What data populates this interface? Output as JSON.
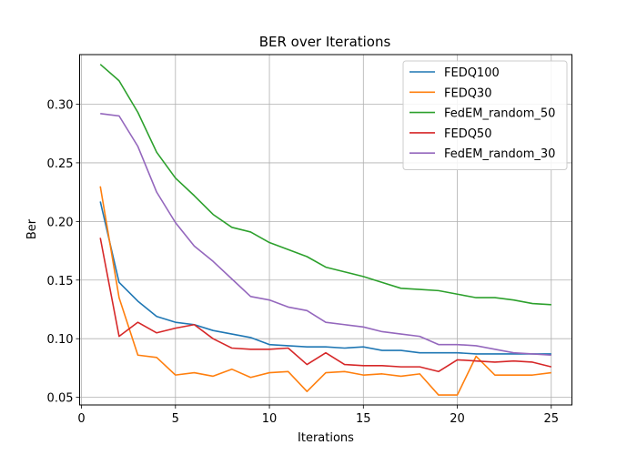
{
  "chart_data": {
    "type": "line",
    "title": "BER over Iterations",
    "xlabel": "Iterations",
    "ylabel": "Ber",
    "xlim": [
      -0.1,
      26.1
    ],
    "ylim": [
      0.0435,
      0.3423
    ],
    "xticks": [
      0,
      5,
      10,
      15,
      20,
      25
    ],
    "yticks": [
      0.05,
      0.1,
      0.15,
      0.2,
      0.25,
      0.3
    ],
    "grid": true,
    "legend_position": "top-right",
    "x": [
      1,
      2,
      3,
      4,
      5,
      6,
      7,
      8,
      9,
      10,
      11,
      12,
      13,
      14,
      15,
      16,
      17,
      18,
      19,
      20,
      21,
      22,
      23,
      24,
      25
    ],
    "series": [
      {
        "name": "FEDQ100",
        "color": "#1f77b4",
        "values": [
          0.217,
          0.148,
          0.132,
          0.119,
          0.114,
          0.112,
          0.107,
          0.104,
          0.101,
          0.095,
          0.094,
          0.093,
          0.093,
          0.092,
          0.093,
          0.09,
          0.09,
          0.088,
          0.088,
          0.088,
          0.087,
          0.087,
          0.087,
          0.087,
          0.087
        ]
      },
      {
        "name": "FEDQ30",
        "color": "#ff7f0e",
        "values": [
          0.23,
          0.135,
          0.086,
          0.084,
          0.069,
          0.071,
          0.068,
          0.074,
          0.067,
          0.071,
          0.072,
          0.055,
          0.071,
          0.072,
          0.069,
          0.07,
          0.068,
          0.07,
          0.052,
          0.052,
          0.085,
          0.069,
          0.069,
          0.069,
          0.071
        ]
      },
      {
        "name": "FedEM_random_50",
        "color": "#2ca02c",
        "values": [
          0.334,
          0.32,
          0.293,
          0.259,
          0.237,
          0.222,
          0.206,
          0.195,
          0.191,
          0.182,
          0.176,
          0.17,
          0.161,
          0.157,
          0.153,
          0.148,
          0.143,
          0.142,
          0.141,
          0.138,
          0.135,
          0.135,
          0.133,
          0.13,
          0.129
        ]
      },
      {
        "name": "FEDQ50",
        "color": "#d62728",
        "values": [
          0.186,
          0.102,
          0.114,
          0.105,
          0.109,
          0.112,
          0.1,
          0.092,
          0.091,
          0.091,
          0.092,
          0.078,
          0.088,
          0.078,
          0.077,
          0.077,
          0.076,
          0.076,
          0.072,
          0.082,
          0.081,
          0.08,
          0.081,
          0.08,
          0.076
        ]
      },
      {
        "name": "FedEM_random_30",
        "color": "#9467bd",
        "values": [
          0.292,
          0.29,
          0.264,
          0.225,
          0.199,
          0.179,
          0.166,
          0.151,
          0.136,
          0.133,
          0.127,
          0.124,
          0.114,
          0.112,
          0.11,
          0.106,
          0.104,
          0.102,
          0.095,
          0.095,
          0.094,
          0.091,
          0.088,
          0.087,
          0.086
        ]
      }
    ]
  }
}
